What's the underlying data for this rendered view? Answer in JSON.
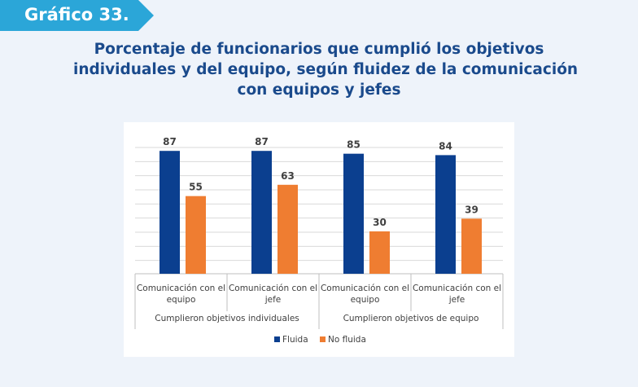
{
  "badge": {
    "label": "Gráfico 33."
  },
  "title": {
    "line1": "Porcentaje de funcionarios que cumplió los objetivos",
    "line2": "individuales y del equipo, según fluidez de la comunicación",
    "line3": "con equipos y jefes"
  },
  "colors": {
    "badge": "#2ba6d8",
    "title": "#1a4a8c",
    "fluida": "#0b3f8f",
    "no_fluida": "#ef7d31",
    "grid": "#d9d9d9"
  },
  "chart_data": {
    "type": "bar",
    "categories": [
      [
        "Comunicación con el",
        "equipo"
      ],
      [
        "Comunicación con el",
        "jefe"
      ],
      [
        "Comunicación con el",
        "equipo"
      ],
      [
        "Comunicación con el",
        "jefe"
      ]
    ],
    "groups": [
      "Cumplieron objetivos individuales",
      "Cumplieron objetivos de equipo"
    ],
    "series": [
      {
        "name": "Fluida",
        "values": [
          87,
          87,
          85,
          84
        ]
      },
      {
        "name": "No fluida",
        "values": [
          55,
          63,
          30,
          39
        ]
      }
    ],
    "ylim": [
      0,
      90
    ],
    "grid": true,
    "data_labels": true,
    "legend_position": "bottom"
  }
}
